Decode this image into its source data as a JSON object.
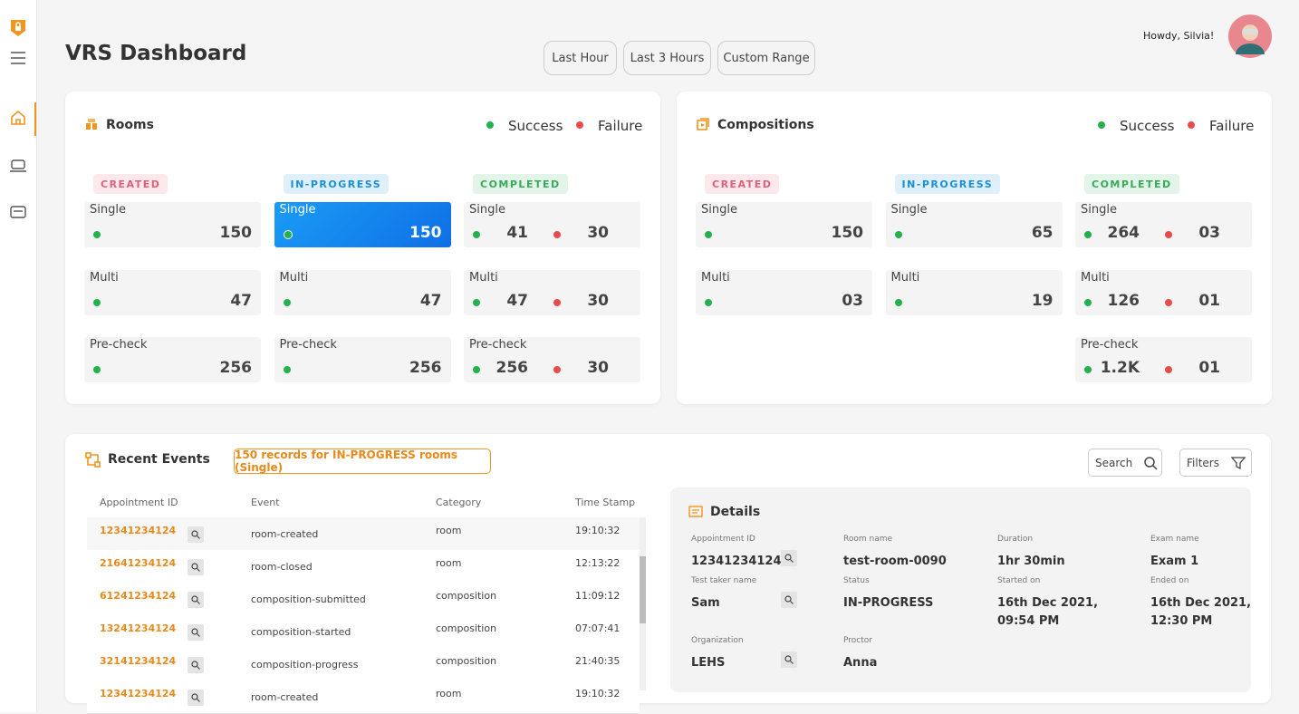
{
  "header": {
    "title": "VRS Dashboard",
    "time_ranges": [
      "Last Hour",
      "Last 3 Hours",
      "Custom Range"
    ],
    "greeting": "Howdy, Silvia!"
  },
  "panels": [
    {
      "title": "Rooms",
      "legend": [
        "Success",
        "Failure"
      ],
      "columns": [
        {
          "status": "CREATED",
          "cards": [
            {
              "label": "Single",
              "success": "150"
            },
            {
              "label": "Multi",
              "success": "47"
            },
            {
              "label": "Pre-check",
              "success": "256"
            }
          ]
        },
        {
          "status": "IN-PROGRESS",
          "cards": [
            {
              "label": "Single",
              "success": "150",
              "selected": true
            },
            {
              "label": "Multi",
              "success": "47"
            },
            {
              "label": "Pre-check",
              "success": "256"
            }
          ]
        },
        {
          "status": "COMPLETED",
          "cards": [
            {
              "label": "Single",
              "success": "41",
              "failure": "30"
            },
            {
              "label": "Multi",
              "success": "47",
              "failure": "30"
            },
            {
              "label": "Pre-check",
              "success": "256",
              "failure": "30"
            }
          ]
        }
      ]
    },
    {
      "title": "Compositions",
      "legend": [
        "Success",
        "Failure"
      ],
      "columns": [
        {
          "status": "CREATED",
          "cards": [
            {
              "label": "Single",
              "success": "150"
            },
            {
              "label": "Multi",
              "success": "03"
            }
          ]
        },
        {
          "status": "IN-PROGRESS",
          "cards": [
            {
              "label": "Single",
              "success": "65"
            },
            {
              "label": "Multi",
              "success": "19"
            }
          ]
        },
        {
          "status": "COMPLETED",
          "cards": [
            {
              "label": "Single",
              "success": "264",
              "failure": "03"
            },
            {
              "label": "Multi",
              "success": "126",
              "failure": "01"
            },
            {
              "label": "Pre-check",
              "success": "1.2K",
              "failure": "01"
            }
          ]
        }
      ]
    }
  ],
  "events": {
    "title": "Recent Events",
    "filter_badge": "150 records for IN-PROGRESS rooms (Single)",
    "search": "Search",
    "filters": "Filters",
    "table": {
      "headers": [
        "Appointment ID",
        "Event",
        "Category",
        "Time Stamp"
      ],
      "rows": [
        [
          "12341234124",
          "room-created",
          "room",
          "19:10:32"
        ],
        [
          "21641234124",
          "room-closed",
          "room",
          "12:13:22"
        ],
        [
          "61241234124",
          "composition-submitted",
          "composition",
          "11:09:12"
        ],
        [
          "13241234124",
          "composition-started",
          "composition",
          "07:07:41"
        ],
        [
          "32141234124",
          "composition-progress",
          "composition",
          "21:40:35"
        ],
        [
          "12341234124",
          "room-created",
          "room",
          "19:10:32"
        ]
      ]
    }
  },
  "details": {
    "title": "Details",
    "fields": [
      {
        "label": "Appointment ID",
        "value": "12341234124",
        "search": true
      },
      {
        "label": "Room name",
        "value": "test-room-0090"
      },
      {
        "label": "Duration",
        "value": "1hr  30min"
      },
      {
        "label": "Exam name",
        "value": "Exam 1"
      },
      {
        "label": "Test taker name",
        "value": "Sam",
        "search": true
      },
      {
        "label": "Status",
        "value": "IN-PROGRESS"
      },
      {
        "label": "Started on",
        "value": "16th Dec 2021, 09:54 PM"
      },
      {
        "label": "Ended on",
        "value": "16th Dec 2021, 12:30 PM"
      },
      {
        "label": "Organization",
        "value": "LEHS",
        "search": true
      },
      {
        "label": "Proctor",
        "value": "Anna"
      }
    ]
  }
}
